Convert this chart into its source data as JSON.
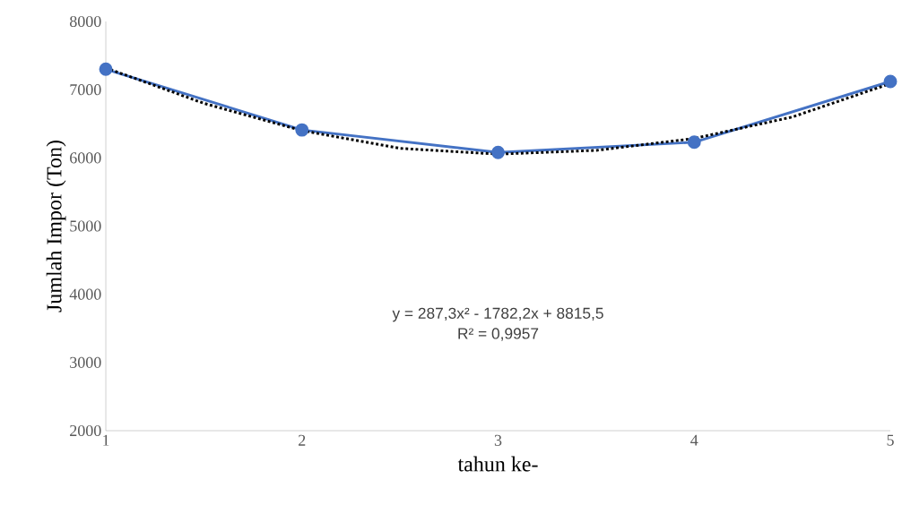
{
  "chart_data": {
    "type": "line",
    "xlabel": "tahun ke-",
    "ylabel": "Jumlah Impor (Ton)",
    "x": [
      1,
      2,
      3,
      4,
      5
    ],
    "series": [
      {
        "color": "#4472c4",
        "values": [
          7300,
          6410,
          6080,
          6230,
          7120
        ],
        "marker": "circle",
        "line_style": "solid"
      },
      {
        "type": "line",
        "color": "#000000",
        "x": [
          1,
          1.5,
          2,
          2.5,
          3,
          3.5,
          4,
          4.5,
          5
        ],
        "values": [
          7320,
          6800,
          6400,
          6140,
          6055,
          6110,
          6285,
          6600,
          7090
        ],
        "marker": "none",
        "line_style": "dotted"
      }
    ],
    "annotations": [
      "y = 287,3x² - 1782,2x + 8815,5",
      "R² = 0,9957"
    ],
    "xlim": [
      1,
      5
    ],
    "xticks": [
      1,
      2,
      3,
      4,
      5
    ],
    "ylim": [
      2000,
      8000
    ],
    "yticks": [
      2000,
      3000,
      4000,
      5000,
      6000,
      7000,
      8000
    ]
  }
}
